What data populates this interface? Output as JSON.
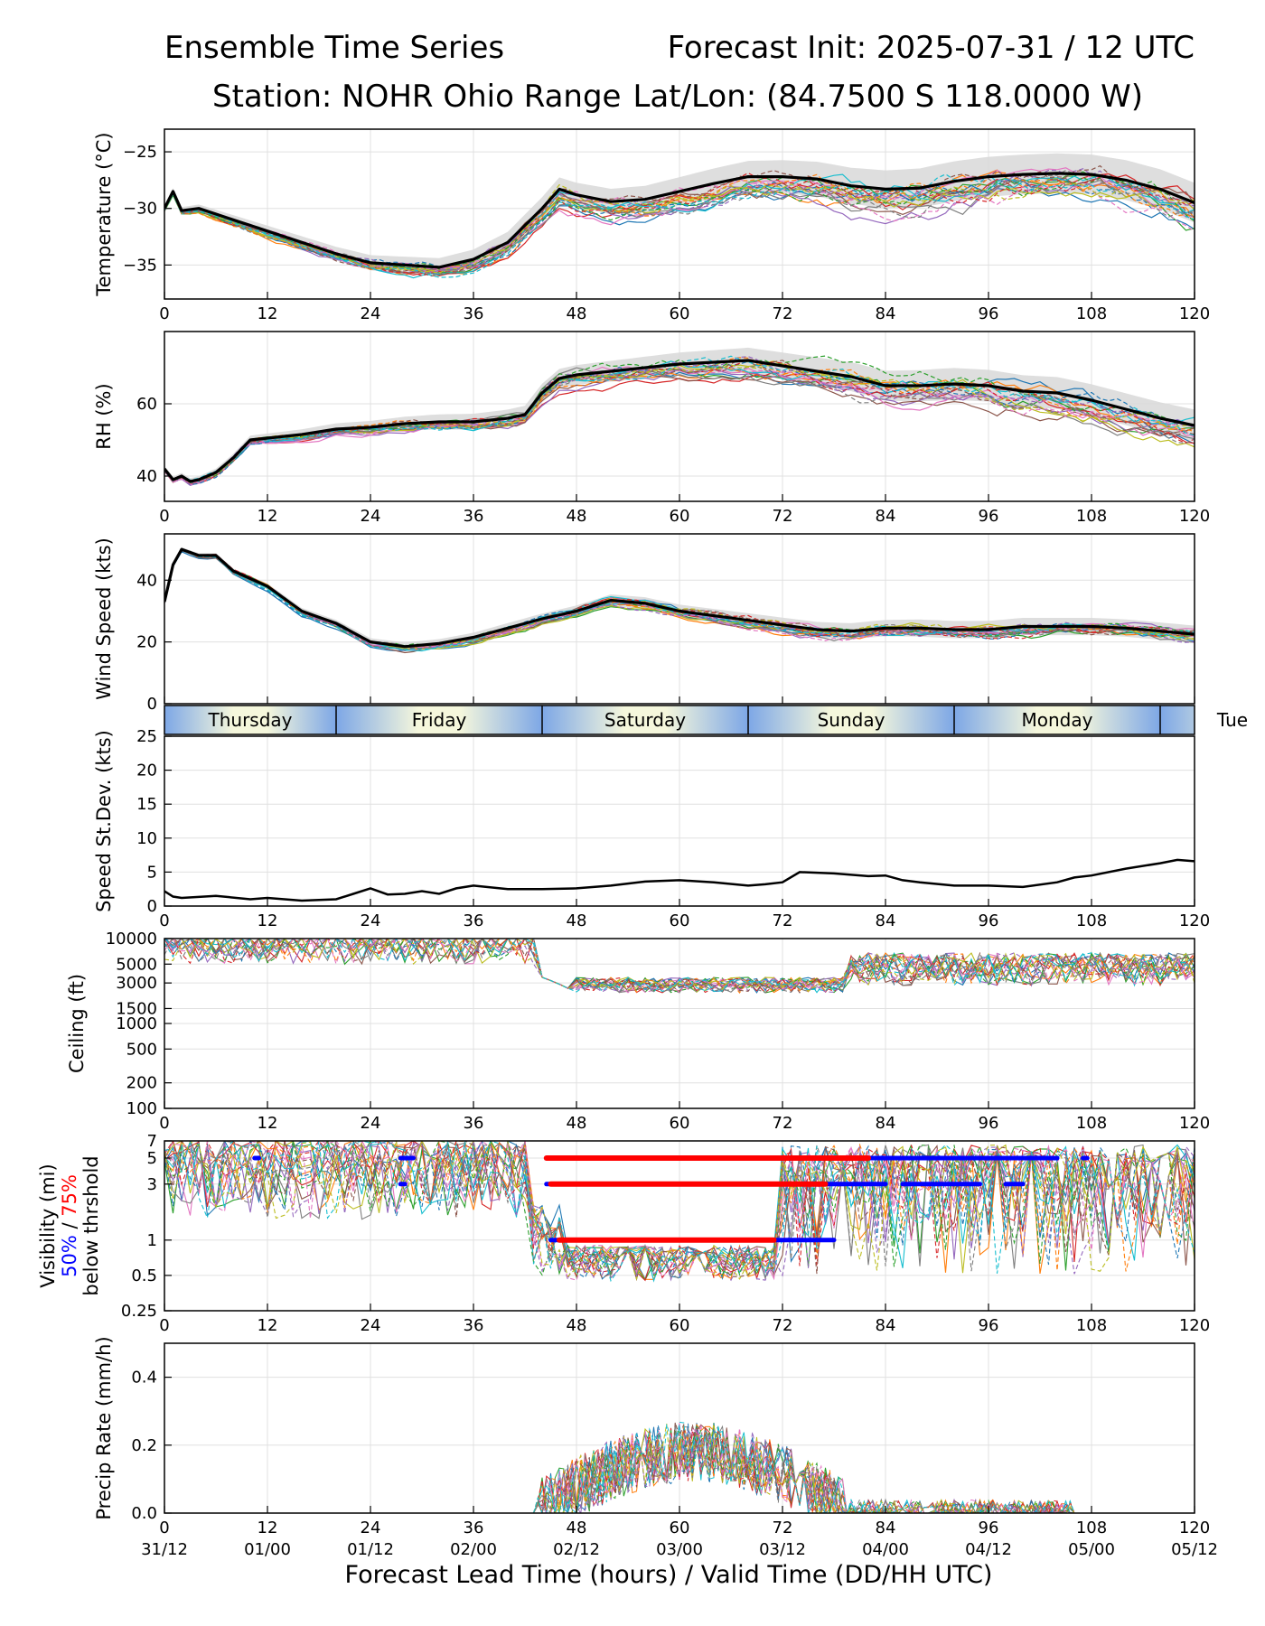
{
  "header": {
    "title_left": "Ensemble Time Series",
    "title_right": "Forecast Init: 2025-07-31 / 12 UTC",
    "station": "Station: NOHR Ohio Range",
    "latlon": "Lat/Lon: (84.7500 S 118.0000 W)"
  },
  "x_axis": {
    "label": "Forecast Lead Time (hours) / Valid Time (DD/HH UTC)",
    "ticks": [
      0,
      12,
      24,
      36,
      48,
      60,
      72,
      84,
      96,
      108,
      120
    ],
    "tick_labels": [
      "0",
      "12",
      "24",
      "36",
      "48",
      "60",
      "72",
      "84",
      "96",
      "108",
      "120"
    ],
    "valid_time_labels": [
      "31/12",
      "01/00",
      "01/12",
      "02/00",
      "02/12",
      "03/00",
      "03/12",
      "04/00",
      "04/12",
      "05/00",
      "05/12"
    ],
    "range": [
      0,
      120
    ]
  },
  "day_strip": {
    "days": [
      {
        "name": "Thursday",
        "start": 0,
        "end": 20
      },
      {
        "name": "Friday",
        "start": 20,
        "end": 44
      },
      {
        "name": "Saturday",
        "start": 44,
        "end": 68
      },
      {
        "name": "Sunday",
        "start": 68,
        "end": 92
      },
      {
        "name": "Monday",
        "start": 92,
        "end": 116
      },
      {
        "name": "Tue",
        "start": 116,
        "end": 140
      }
    ],
    "colors": {
      "day": "#f5f7dc",
      "night": "#7da7e6"
    }
  },
  "colors": {
    "ensemble_mean": "#000000",
    "spread_band": "#d8d8d8",
    "vis_50": "#0000ff",
    "vis_75": "#ff0000",
    "members": [
      "#1f77b4",
      "#ff7f0e",
      "#2ca02c",
      "#d62728",
      "#9467bd",
      "#8c564b",
      "#e377c2",
      "#7f7f7f",
      "#bcbd22",
      "#17becf"
    ]
  },
  "chart_data": [
    {
      "type": "line",
      "title": "",
      "xlabel": "",
      "ylabel": "Temperature (°C)",
      "ylim": [
        -38,
        -23
      ],
      "yticks": [
        -35,
        -30,
        -25
      ],
      "ytick_labels": [
        "−35",
        "−30",
        "−25"
      ],
      "grid": true,
      "series": [
        {
          "role": "ensemble-mean",
          "x": [
            0,
            1,
            2,
            4,
            8,
            12,
            16,
            20,
            24,
            28,
            32,
            36,
            40,
            44,
            46,
            48,
            52,
            56,
            60,
            64,
            68,
            72,
            76,
            80,
            84,
            88,
            92,
            96,
            100,
            104,
            108,
            112,
            116,
            120
          ],
          "y": [
            -30,
            -28.5,
            -30.2,
            -30.0,
            -31.0,
            -32.0,
            -33.0,
            -34.0,
            -34.8,
            -35.0,
            -35.2,
            -34.5,
            -33.0,
            -30.0,
            -28.3,
            -28.8,
            -29.4,
            -29.2,
            -28.5,
            -27.8,
            -27.2,
            -27.2,
            -27.4,
            -28.0,
            -28.3,
            -28.2,
            -27.6,
            -27.2,
            -27.0,
            -26.9,
            -27.0,
            -27.5,
            -28.3,
            -29.5
          ]
        }
      ]
    },
    {
      "type": "line",
      "title": "",
      "xlabel": "",
      "ylabel": "RH (%)",
      "ylim": [
        33,
        80
      ],
      "yticks": [
        40,
        60
      ],
      "ytick_labels": [
        "40",
        "60"
      ],
      "grid": true,
      "series": [
        {
          "role": "ensemble-mean",
          "x": [
            0,
            1,
            2,
            3,
            4,
            6,
            8,
            10,
            12,
            16,
            20,
            24,
            28,
            32,
            36,
            40,
            42,
            44,
            46,
            48,
            52,
            56,
            60,
            64,
            68,
            72,
            76,
            80,
            84,
            88,
            92,
            96,
            100,
            104,
            108,
            112,
            116,
            120
          ],
          "y": [
            42,
            39,
            40,
            38.5,
            39,
            41,
            45,
            50,
            50.5,
            51.5,
            53,
            53.5,
            54.5,
            55,
            55,
            56,
            57,
            63,
            67,
            68,
            69,
            70,
            71,
            71.5,
            72,
            70.5,
            69,
            67.5,
            65,
            65,
            65.5,
            65,
            63.5,
            63,
            61,
            58.5,
            56,
            54
          ]
        }
      ]
    },
    {
      "type": "line",
      "title": "",
      "xlabel": "",
      "ylabel": "Wind Speed (kts)",
      "ylim": [
        0,
        55
      ],
      "yticks": [
        0,
        20,
        40
      ],
      "ytick_labels": [
        "0",
        "20",
        "40"
      ],
      "grid": true,
      "series": [
        {
          "role": "ensemble-mean",
          "x": [
            0,
            1,
            2,
            4,
            6,
            8,
            12,
            16,
            20,
            24,
            28,
            32,
            36,
            40,
            44,
            48,
            52,
            56,
            60,
            64,
            68,
            72,
            76,
            80,
            84,
            88,
            92,
            96,
            100,
            104,
            108,
            112,
            116,
            120
          ],
          "y": [
            33,
            45,
            50,
            48,
            48,
            43,
            38,
            30,
            26,
            20,
            18.5,
            19.5,
            21.5,
            24.5,
            27.5,
            30,
            33.5,
            32.5,
            30,
            28.5,
            27,
            25.5,
            24,
            23.5,
            24.5,
            24.5,
            24,
            24,
            25,
            25,
            25,
            24.5,
            23.5,
            22.5
          ]
        }
      ]
    },
    {
      "type": "line",
      "title": "",
      "xlabel": "",
      "ylabel": "Speed St.Dev. (kts)",
      "ylim": [
        0,
        25
      ],
      "yticks": [
        0,
        5,
        10,
        15,
        20,
        25
      ],
      "ytick_labels": [
        "0",
        "5",
        "10",
        "15",
        "20",
        "25"
      ],
      "grid": true,
      "series": [
        {
          "role": "stdev",
          "x": [
            0,
            1,
            2,
            6,
            10,
            12,
            16,
            20,
            22,
            24,
            26,
            28,
            30,
            32,
            34,
            36,
            40,
            44,
            48,
            52,
            56,
            60,
            64,
            68,
            70,
            72,
            74,
            78,
            82,
            84,
            86,
            88,
            92,
            96,
            100,
            104,
            106,
            108,
            112,
            116,
            118,
            120
          ],
          "y": [
            2.2,
            1.4,
            1.2,
            1.5,
            1.0,
            1.2,
            0.8,
            1.0,
            1.8,
            2.6,
            1.7,
            1.8,
            2.2,
            1.8,
            2.6,
            3.0,
            2.5,
            2.5,
            2.6,
            3.0,
            3.6,
            3.8,
            3.5,
            3.0,
            3.2,
            3.5,
            5.0,
            4.8,
            4.4,
            4.5,
            3.8,
            3.5,
            3.0,
            3.0,
            2.8,
            3.5,
            4.2,
            4.5,
            5.5,
            6.3,
            6.8,
            6.6
          ]
        }
      ]
    },
    {
      "type": "line",
      "title": "",
      "xlabel": "",
      "ylabel": "Ceiling (ft)",
      "scale": "log",
      "ylim": [
        100,
        10000
      ],
      "yticks": [
        100,
        200,
        500,
        1000,
        1500,
        3000,
        5000,
        10000
      ],
      "ytick_labels": [
        "100",
        "200",
        "500",
        "1000",
        "1500",
        "3000",
        "5000",
        "10000"
      ],
      "grid": true,
      "series": []
    },
    {
      "type": "line",
      "title": "",
      "xlabel": "",
      "ylabel": "Visibility (mi)",
      "ylabel_extra": {
        "pct50": "50%",
        "sep": " / ",
        "pct75": "75%",
        "line3": "below thrshold"
      },
      "scale": "log",
      "ylim": [
        0.25,
        7
      ],
      "yticks": [
        0.25,
        0.5,
        1,
        3,
        5,
        7
      ],
      "ytick_labels": [
        "0.25",
        "0.5",
        "1",
        "3",
        "5",
        "7"
      ],
      "grid": true,
      "threshold_bars": [
        {
          "level": "50%",
          "threshold": 5,
          "segments": [
            [
              10.5,
              11
            ],
            [
              27.5,
              29
            ],
            [
              44.5,
              104
            ],
            [
              107,
              107.5
            ]
          ]
        },
        {
          "level": "50%",
          "threshold": 3,
          "segments": [
            [
              27.5,
              28
            ],
            [
              44.5,
              84
            ],
            [
              86,
              95
            ],
            [
              98,
              100
            ]
          ]
        },
        {
          "level": "50%",
          "threshold": 1,
          "segments": [
            [
              45,
              78
            ]
          ]
        },
        {
          "level": "75%",
          "threshold": 5,
          "segments": [
            [
              44.5,
              82
            ]
          ]
        },
        {
          "level": "75%",
          "threshold": 3,
          "segments": [
            [
              45,
              77
            ]
          ]
        },
        {
          "level": "75%",
          "threshold": 1,
          "segments": [
            [
              46,
              71
            ]
          ]
        }
      ],
      "series": []
    },
    {
      "type": "line",
      "title": "",
      "xlabel": "Forecast Lead Time (hours) / Valid Time (DD/HH UTC)",
      "ylabel": "Precip Rate (mm/h)",
      "ylim": [
        0,
        0.5
      ],
      "yticks": [
        0,
        0.2,
        0.4
      ],
      "ytick_labels": [
        "0.0",
        "0.2",
        "0.4"
      ],
      "grid": true,
      "series": []
    }
  ]
}
